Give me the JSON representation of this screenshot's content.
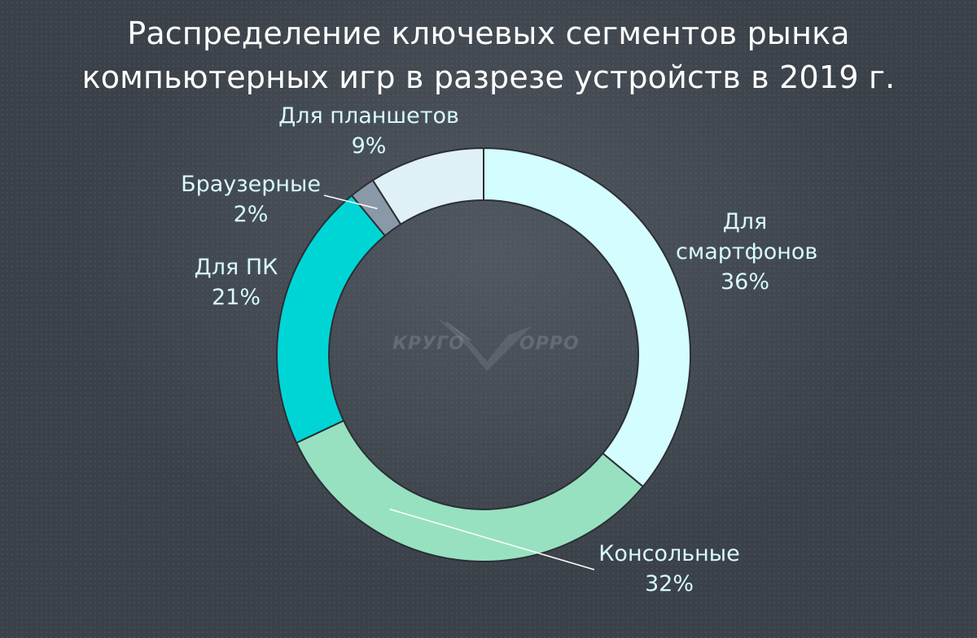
{
  "title_lines": [
    "Распределение ключевых сегментов рынка",
    "компьютерных игр в разрезе устройств в 2019 г."
  ],
  "watermark": {
    "left": "КРУГО",
    "right": "ОРРО"
  },
  "chart_data": {
    "type": "pie",
    "variant": "donut",
    "title": "Распределение ключевых сегментов рынка компьютерных игр в разрезе устройств в 2019 г.",
    "unit": "%",
    "slices": [
      {
        "name": "Для смартфонов",
        "label_lines": [
          "Для",
          "смартфонов"
        ],
        "value": 36,
        "value_label": "36%",
        "color": "#d4fdff"
      },
      {
        "name": "Консольные",
        "label_lines": [
          "Консольные"
        ],
        "value": 32,
        "value_label": "32%",
        "color": "#97e1c1"
      },
      {
        "name": "Для ПК",
        "label_lines": [
          "Для ПК"
        ],
        "value": 21,
        "value_label": "21%",
        "color": "#00d5d6"
      },
      {
        "name": "Браузерные",
        "label_lines": [
          "Браузерные"
        ],
        "value": 2,
        "value_label": "2%",
        "color": "#8a99a8"
      },
      {
        "name": "Для планшетов",
        "label_lines": [
          "Для планшетов"
        ],
        "value": 9,
        "value_label": "9%",
        "color": "#dff1f6"
      }
    ],
    "start": "top",
    "direction": "clockwise",
    "legend": "none"
  }
}
